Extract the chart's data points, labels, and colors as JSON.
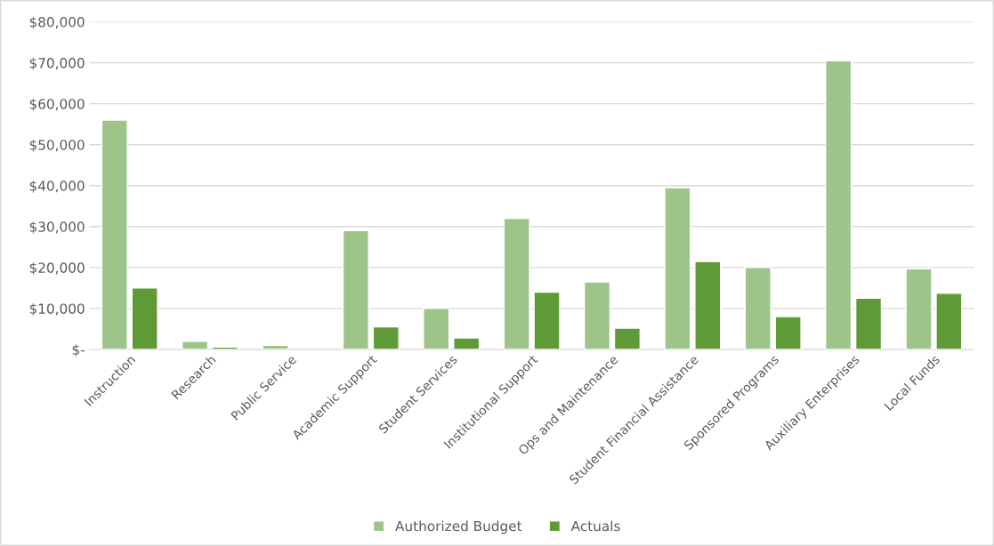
{
  "chart_data": {
    "type": "bar",
    "categories": [
      "Instruction",
      "Research",
      "Public Service",
      "Academic Support",
      "Student Services",
      "Institutional Support",
      "Ops and Maintenance",
      "Student Financial Assistance",
      "Sponsored Programs",
      "Auxiliary Enterprises",
      "Local Funds"
    ],
    "series": [
      {
        "name": "Authorized Budget",
        "color": "#9dc58a",
        "values": [
          56000,
          2000,
          1000,
          29000,
          10000,
          32000,
          16500,
          39500,
          20000,
          70500,
          19700
        ]
      },
      {
        "name": "Actuals",
        "color": "#5e9a35",
        "values": [
          15000,
          600,
          null,
          5500,
          2800,
          14000,
          5200,
          21500,
          8000,
          12500,
          13700
        ]
      }
    ],
    "ylim": [
      0,
      80000
    ],
    "yticks": [
      {
        "value": 0,
        "label": "$-"
      },
      {
        "value": 10000,
        "label": "$10,000"
      },
      {
        "value": 20000,
        "label": "$20,000"
      },
      {
        "value": 30000,
        "label": "$30,000"
      },
      {
        "value": 40000,
        "label": "$40,000"
      },
      {
        "value": 50000,
        "label": "$50,000"
      },
      {
        "value": 60000,
        "label": "$60,000"
      },
      {
        "value": 70000,
        "label": "$70,000"
      },
      {
        "value": 80000,
        "label": "$80,000"
      }
    ],
    "grid": "y",
    "legend": "bottom"
  }
}
